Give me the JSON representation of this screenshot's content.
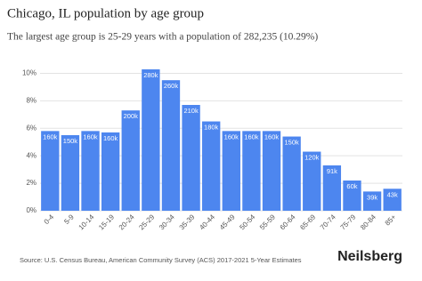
{
  "chart_data": {
    "type": "bar",
    "title": "Chicago, IL population by age group",
    "subtitle": "The largest age group is 25-29 years with a population of 282,235 (10.29%)",
    "categories": [
      "0-4",
      "5-9",
      "10-14",
      "15-19",
      "20-24",
      "25-29",
      "30-34",
      "35-39",
      "40-44",
      "45-49",
      "50-54",
      "55-59",
      "60-64",
      "65-69",
      "70-74",
      "75-79",
      "80-84",
      "85+"
    ],
    "values": [
      5.8,
      5.5,
      5.8,
      5.7,
      7.3,
      10.29,
      9.5,
      7.7,
      6.5,
      5.8,
      5.8,
      5.8,
      5.4,
      4.3,
      3.3,
      2.2,
      1.4,
      1.6
    ],
    "value_labels": [
      "160k",
      "150k",
      "160k",
      "160k",
      "200k",
      "280k",
      "260k",
      "210k",
      "180k",
      "160k",
      "160k",
      "160k",
      "150k",
      "120k",
      "91k",
      "60k",
      "39k",
      "43k"
    ],
    "color": "#4d86ef",
    "ylim": [
      0,
      11
    ],
    "yticks": [
      {
        "value": 0,
        "label": "0%"
      },
      {
        "value": 2,
        "label": "2%"
      },
      {
        "value": 4,
        "label": "4%"
      },
      {
        "value": 6,
        "label": "6%"
      },
      {
        "value": 8,
        "label": "8%"
      },
      {
        "value": 10,
        "label": "10%"
      }
    ],
    "grid": true,
    "source": "Source: U.S. Census Bureau, American Community Survey (ACS) 2017-2021 5-Year Estimates",
    "brand": "Neilsberg"
  }
}
